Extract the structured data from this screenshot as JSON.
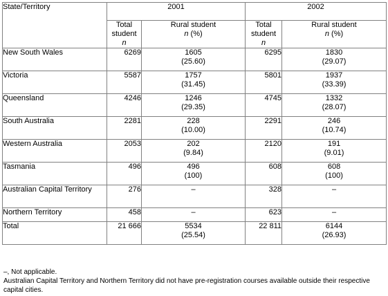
{
  "table": {
    "header": {
      "state_label": "State/Territory",
      "year1": "2001",
      "year2": "2002",
      "total_label": "Total student",
      "total_unit": "n",
      "rural_label": "Rural student",
      "rural_unit": "n",
      "rural_pct": " (%)"
    },
    "rows": [
      {
        "state": "New South Wales",
        "t2001": "6269",
        "r2001": "1605",
        "p2001": "(25.60)",
        "t2002": "6295",
        "r2002": "1830",
        "p2002": "(29.07)"
      },
      {
        "state": "Victoria",
        "t2001": "5587",
        "r2001": "1757",
        "p2001": "(31.45)",
        "t2002": "5801",
        "r2002": "1937",
        "p2002": "(33.39)"
      },
      {
        "state": "Queensland",
        "t2001": "4246",
        "r2001": "1246",
        "p2001": "(29.35)",
        "t2002": "4745",
        "r2002": "1332",
        "p2002": "(28.07)"
      },
      {
        "state": "South Australia",
        "t2001": "2281",
        "r2001": "228",
        "p2001": "(10.00)",
        "t2002": "2291",
        "r2002": "246",
        "p2002": "(10.74)"
      },
      {
        "state": "Western Australia",
        "t2001": "2053",
        "r2001": "202",
        "p2001": "(9.84)",
        "t2002": "2120",
        "r2002": "191",
        "p2002": "(9.01)"
      },
      {
        "state": "Tasmania",
        "t2001": "496",
        "r2001": "496",
        "p2001": "(100)",
        "t2002": "608",
        "r2002": "608",
        "p2002": "(100)"
      },
      {
        "state": "Australian Capital Territory",
        "t2001": "276",
        "r2001": "–",
        "p2001": "",
        "t2002": "328",
        "r2002": "–",
        "p2002": ""
      },
      {
        "state": "Northern Territory",
        "t2001": "458",
        "r2001": "–",
        "p2001": "",
        "t2002": "623",
        "r2002": "–",
        "p2002": ""
      },
      {
        "state": "Total",
        "t2001": "21 666",
        "r2001": "5534",
        "p2001": "(25.54)",
        "t2002": "22 811",
        "r2002": "6144",
        "p2002": "(26.93)"
      }
    ]
  },
  "footnotes": [
    "–, Not applicable.",
    "Australian Capital Territory and Northern Territory did not have pre-registration courses available outside their respective capital cities."
  ],
  "colors": {
    "border": "#808080",
    "text": "#000000",
    "background": "#ffffff"
  }
}
